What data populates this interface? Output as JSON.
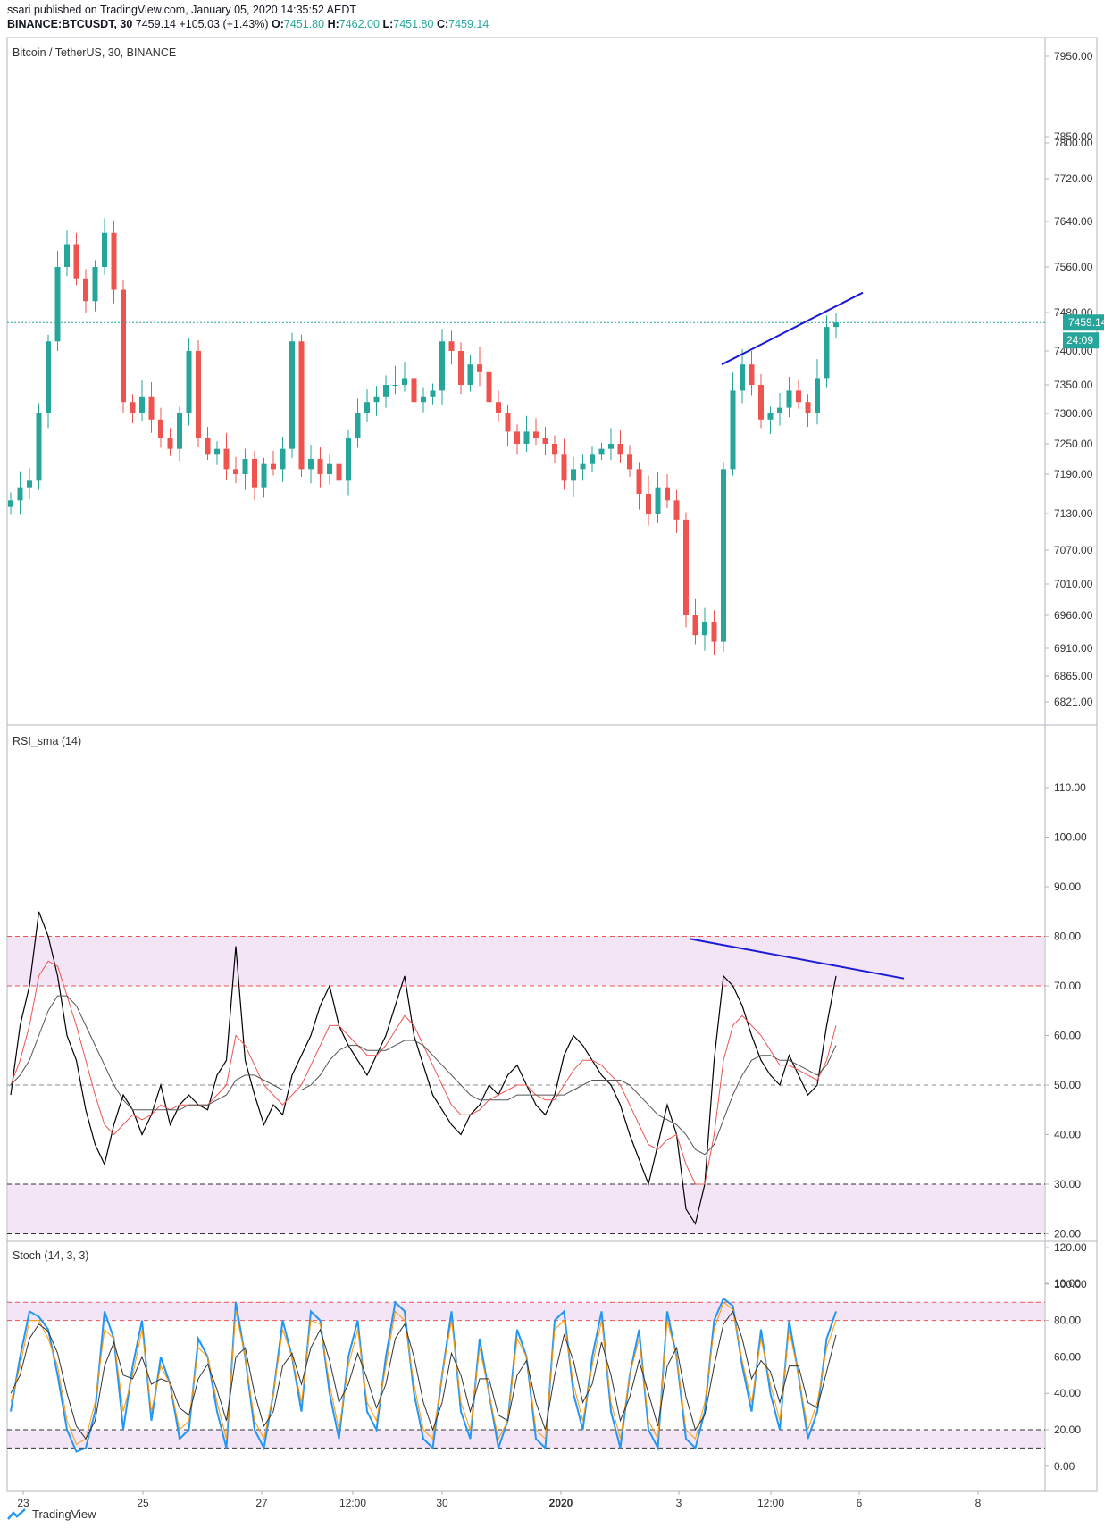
{
  "header": {
    "published_line": "ssari published on TradingView.com, January 05, 2020 14:35:52 AEDT",
    "symbol": "BINANCE:BTCUSDT, 30",
    "price": "7459.14",
    "change": "+105.03 (+1.43%)",
    "o_label": "O:",
    "o": "7451.80",
    "h_label": "H:",
    "h": "7462.00",
    "l_label": "L:",
    "l": "7451.80",
    "c_label": "C:",
    "c": "7459.14"
  },
  "footer": {
    "brand": "TradingView"
  },
  "colors": {
    "up": "#26a69a",
    "down": "#ef5350",
    "trendline": "#1a1ad9",
    "band": "#f3e5f5",
    "last_price": "#26a69a"
  },
  "chart_data": [
    {
      "type": "candlestick",
      "title": "Bitcoin / TetherUS, 30, BINANCE",
      "y_ticks": [
        "7950.00",
        "7850.00",
        "7800.00",
        "7720.00",
        "7640.00",
        "7560.00",
        "7480.00",
        "7400.00",
        "7350.00",
        "7300.00",
        "7250.00",
        "7190.00",
        "7130.00",
        "7070.00",
        "7010.00",
        "6960.00",
        "6910.00",
        "6865.00",
        "6821.00"
      ],
      "last_price": "7459.14",
      "countdown": "24:09",
      "trendline": {
        "from": [
          "Jan 3 ~06:00",
          7380
        ],
        "to": [
          "Jan 4 ~05:00",
          7515
        ]
      },
      "x_ticks": [
        "23",
        "25",
        "27",
        "12:00",
        "30",
        "2020",
        "3",
        "12:00",
        "6",
        "8"
      ],
      "closes": [
        7150,
        7170,
        7180,
        7300,
        7420,
        7560,
        7600,
        7540,
        7500,
        7560,
        7620,
        7520,
        7320,
        7300,
        7330,
        7290,
        7260,
        7240,
        7300,
        7400,
        7260,
        7230,
        7240,
        7200,
        7190,
        7220,
        7170,
        7210,
        7200,
        7240,
        7420,
        7200,
        7220,
        7190,
        7210,
        7180,
        7260,
        7300,
        7320,
        7330,
        7350,
        7350,
        7360,
        7320,
        7330,
        7340,
        7420,
        7400,
        7350,
        7380,
        7370,
        7320,
        7300,
        7270,
        7250,
        7270,
        7260,
        7250,
        7230,
        7180,
        7200,
        7210,
        7230,
        7240,
        7250,
        7230,
        7200,
        7160,
        7130,
        7170,
        7150,
        7120,
        6960,
        6930,
        6950,
        6920,
        7200,
        7340,
        7380,
        7350,
        7290,
        7300,
        7310,
        7340,
        7320,
        7300,
        7360,
        7450,
        7459
      ]
    },
    {
      "type": "line",
      "title": "RSI_sma (14)",
      "y_ticks": [
        "110.00",
        "100.00",
        "90.00",
        "80.00",
        "70.00",
        "60.00",
        "50.00",
        "40.00",
        "30.00",
        "20.00",
        "10.00"
      ],
      "levels": [
        80,
        70,
        50,
        30,
        20
      ],
      "bands": [
        [
          70,
          80
        ],
        [
          20,
          30
        ]
      ],
      "trendline": {
        "from": [
          "Jan 3 ~00:00",
          79.5
        ],
        "to": [
          "Jan 4 ~12:00",
          71.5
        ]
      },
      "series": [
        {
          "color": "#000000",
          "values": [
            48,
            62,
            70,
            85,
            80,
            72,
            60,
            55,
            45,
            38,
            34,
            42,
            48,
            45,
            40,
            44,
            50,
            42,
            46,
            48,
            46,
            45,
            52,
            55,
            78,
            55,
            48,
            42,
            46,
            44,
            52,
            56,
            60,
            66,
            70,
            62,
            58,
            55,
            52,
            56,
            60,
            66,
            72,
            60,
            54,
            48,
            45,
            42,
            40,
            44,
            46,
            50,
            48,
            52,
            54,
            50,
            46,
            44,
            48,
            56,
            60,
            58,
            55,
            52,
            50,
            46,
            40,
            35,
            30,
            38,
            46,
            40,
            25,
            22,
            30,
            55,
            72,
            70,
            66,
            60,
            55,
            52,
            50,
            56,
            52,
            48,
            50,
            62,
            72
          ]
        },
        {
          "color": "#ef5350",
          "values": [
            50,
            55,
            62,
            72,
            75,
            74,
            68,
            62,
            55,
            48,
            42,
            40,
            42,
            44,
            43,
            44,
            46,
            45,
            46,
            46,
            46,
            46,
            48,
            50,
            60,
            58,
            54,
            50,
            48,
            46,
            48,
            50,
            54,
            58,
            62,
            62,
            60,
            58,
            56,
            56,
            58,
            61,
            64,
            62,
            58,
            54,
            50,
            46,
            44,
            44,
            45,
            47,
            48,
            49,
            50,
            50,
            48,
            47,
            47,
            50,
            53,
            55,
            55,
            54,
            52,
            50,
            46,
            42,
            38,
            37,
            39,
            40,
            34,
            30,
            30,
            40,
            55,
            62,
            64,
            62,
            60,
            57,
            54,
            54,
            53,
            52,
            51,
            55,
            62
          ]
        },
        {
          "color": "#555555",
          "values": [
            50,
            52,
            55,
            60,
            65,
            68,
            68,
            66,
            62,
            58,
            54,
            50,
            47,
            45,
            45,
            45,
            45,
            45,
            45,
            46,
            46,
            46,
            47,
            48,
            51,
            52,
            52,
            51,
            50,
            49,
            49,
            49,
            50,
            52,
            55,
            57,
            58,
            58,
            57,
            57,
            57,
            58,
            59,
            59,
            58,
            56,
            54,
            52,
            50,
            48,
            47,
            47,
            47,
            47,
            48,
            48,
            48,
            48,
            48,
            48,
            49,
            50,
            51,
            51,
            51,
            51,
            50,
            48,
            46,
            44,
            43,
            42,
            40,
            37,
            36,
            38,
            43,
            48,
            52,
            55,
            56,
            56,
            55,
            55,
            54,
            53,
            52,
            54,
            58
          ]
        }
      ]
    },
    {
      "type": "line",
      "title": "Stoch (14, 3, 3)",
      "y_ticks": [
        "120.00",
        "100.00",
        "80.00",
        "60.00",
        "40.00",
        "20.00",
        "0.00"
      ],
      "levels": [
        90,
        80,
        20,
        10
      ],
      "bands": [
        [
          80,
          90
        ],
        [
          10,
          20
        ]
      ],
      "series": [
        {
          "color": "#2196f3",
          "values": [
            30,
            60,
            85,
            82,
            75,
            50,
            20,
            8,
            10,
            30,
            85,
            70,
            20,
            55,
            80,
            25,
            60,
            45,
            15,
            20,
            70,
            60,
            30,
            10,
            90,
            60,
            20,
            10,
            40,
            80,
            60,
            30,
            85,
            80,
            40,
            15,
            60,
            80,
            30,
            20,
            60,
            90,
            85,
            40,
            15,
            10,
            50,
            85,
            30,
            15,
            70,
            40,
            10,
            25,
            75,
            60,
            15,
            10,
            80,
            85,
            40,
            20,
            60,
            85,
            30,
            10,
            50,
            75,
            20,
            10,
            85,
            60,
            15,
            10,
            30,
            80,
            92,
            88,
            55,
            30,
            75,
            40,
            20,
            80,
            50,
            15,
            30,
            70,
            85
          ]
        },
        {
          "color": "#ff9800",
          "values": [
            35,
            55,
            80,
            80,
            70,
            55,
            25,
            12,
            15,
            35,
            75,
            70,
            30,
            50,
            75,
            30,
            55,
            45,
            20,
            25,
            65,
            60,
            35,
            15,
            85,
            60,
            25,
            15,
            40,
            75,
            60,
            35,
            80,
            78,
            45,
            20,
            55,
            75,
            35,
            25,
            55,
            85,
            80,
            45,
            20,
            15,
            50,
            80,
            35,
            20,
            65,
            40,
            15,
            25,
            70,
            60,
            20,
            15,
            75,
            80,
            45,
            25,
            55,
            80,
            35,
            15,
            50,
            70,
            25,
            15,
            80,
            60,
            20,
            15,
            35,
            75,
            90,
            86,
            58,
            35,
            70,
            45,
            25,
            75,
            50,
            20,
            35,
            65,
            80
          ]
        },
        {
          "color": "#333333",
          "values": [
            40,
            50,
            70,
            78,
            74,
            62,
            40,
            22,
            15,
            25,
            55,
            68,
            50,
            48,
            60,
            45,
            48,
            46,
            32,
            28,
            48,
            56,
            42,
            25,
            60,
            65,
            40,
            22,
            30,
            55,
            62,
            45,
            65,
            75,
            58,
            35,
            45,
            62,
            48,
            32,
            45,
            70,
            78,
            60,
            35,
            20,
            35,
            62,
            50,
            30,
            48,
            48,
            28,
            25,
            50,
            58,
            35,
            20,
            50,
            72,
            58,
            35,
            45,
            68,
            50,
            25,
            38,
            58,
            40,
            22,
            55,
            65,
            38,
            20,
            28,
            55,
            78,
            85,
            70,
            48,
            58,
            52,
            35,
            55,
            55,
            35,
            32,
            52,
            72
          ]
        }
      ]
    }
  ]
}
